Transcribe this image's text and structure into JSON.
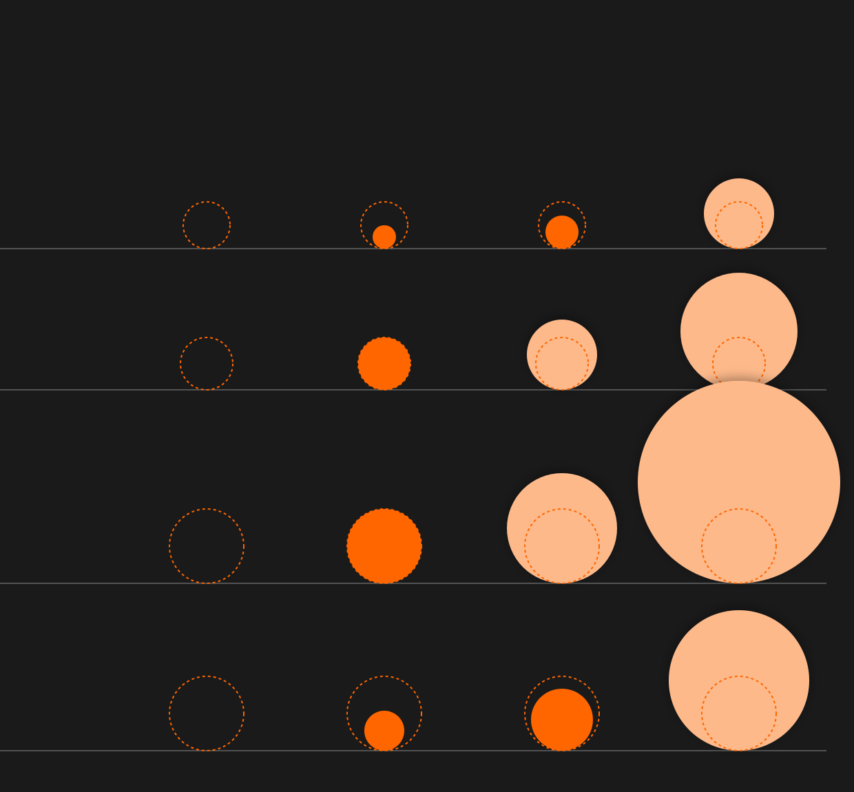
{
  "chart_data": {
    "type": "bubble",
    "reference_color": "#ff6600",
    "color_below": "#ff6600",
    "color_above": "#fdb98a",
    "baseline_color": "#666666",
    "rows": [
      {
        "reference": 34,
        "values": [
          0,
          17,
          24,
          51
        ]
      },
      {
        "reference": 38,
        "values": [
          0,
          38,
          51,
          85
        ]
      },
      {
        "reference": 54,
        "values": [
          0,
          54,
          80,
          147
        ]
      },
      {
        "reference": 54,
        "values": [
          0,
          29,
          45,
          102
        ]
      }
    ]
  }
}
